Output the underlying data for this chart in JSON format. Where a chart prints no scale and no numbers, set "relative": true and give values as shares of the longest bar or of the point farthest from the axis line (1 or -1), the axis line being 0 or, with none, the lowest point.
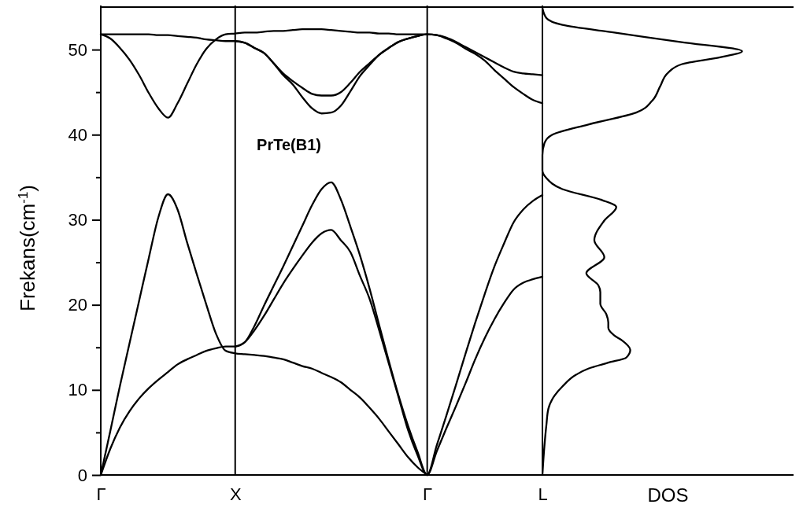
{
  "chart_data": [
    {
      "type": "line",
      "title": "PrTe(B1)",
      "ylabel": "Frekans(cm$^{-1}$)",
      "grid": "x",
      "categories": [
        "Γ",
        null,
        null,
        null,
        null,
        null,
        null,
        null,
        null,
        null,
        null,
        null,
        null,
        null,
        "X",
        null,
        null,
        null,
        null,
        null,
        null,
        null,
        null,
        null,
        null,
        null,
        null,
        null,
        null,
        null,
        null,
        null,
        null,
        null,
        "Γ",
        null,
        null,
        null,
        null,
        null,
        null,
        null,
        null,
        null,
        null,
        null,
        "L"
      ],
      "ylim": [
        0,
        55
      ],
      "yticks": [
        0,
        {
          "value": 5,
          "label": null
        },
        10,
        {
          "value": 15,
          "label": null
        },
        20,
        {
          "value": 25,
          "label": null
        },
        30,
        {
          "value": 35,
          "label": null
        },
        40,
        {
          "value": 45,
          "label": null
        },
        50
      ],
      "series": [
        {
          "color": "#000000",
          "values": [
            0,
            3.1,
            5.6,
            7.5,
            9.0,
            10.2,
            11.2,
            12.1,
            13.0,
            13.6,
            14.1,
            14.6,
            14.9,
            15.1,
            15.1,
            15.6,
            17.5,
            19.9,
            22.2,
            24.5,
            26.9,
            29.3,
            31.7,
            33.6,
            34.4,
            32.4,
            29.2,
            25.8,
            21.9,
            17.6,
            13.4,
            9.4,
            5.8,
            2.7,
            0,
            3.5,
            7.0,
            10.6,
            14.3,
            17.9,
            21.3,
            24.5,
            27.2,
            29.7,
            31.2,
            32.2,
            32.9
          ]
        },
        {
          "color": "#000000",
          "values": [
            null,
            null,
            null,
            null,
            null,
            null,
            null,
            null,
            null,
            null,
            null,
            null,
            null,
            null,
            15.1,
            15.6,
            17.0,
            18.7,
            20.6,
            22.5,
            24.2,
            25.8,
            27.3,
            28.4,
            28.8,
            27.6,
            26.2,
            23.4,
            20.7,
            17.0,
            13.1,
            9.2,
            5.3,
            2.3,
            0,
            2.8,
            5.5,
            8.1,
            10.8,
            13.6,
            16.1,
            18.3,
            20.2,
            21.8,
            22.6,
            23.0,
            23.3
          ]
        },
        {
          "color": "#000000",
          "values": [
            0,
            5.2,
            10.5,
            15.5,
            20.5,
            25.5,
            30.3,
            33.0,
            31.2,
            27.3,
            23.6,
            20.0,
            16.6,
            14.6,
            14.3,
            14.2,
            14.1,
            14.0,
            13.8,
            13.6,
            13.2,
            12.8,
            12.5,
            12.0,
            11.5,
            10.9,
            10.0,
            9.1,
            7.9,
            6.6,
            5.1,
            3.6,
            2.1,
            0.9,
            0,
            null,
            null,
            null,
            null,
            null,
            null,
            null,
            null,
            null,
            null,
            null,
            null
          ]
        },
        {
          "color": "#000000",
          "values": [
            51.8,
            51.8,
            51.8,
            51.8,
            51.8,
            51.8,
            51.7,
            51.7,
            51.6,
            51.5,
            51.4,
            51.2,
            51.1,
            51.0,
            51.0,
            50.8,
            50.2,
            49.6,
            48.4,
            47.2,
            46.3,
            45.5,
            44.8,
            44.6,
            44.6,
            45.0,
            46.1,
            47.4,
            48.4,
            49.4,
            50.2,
            50.9,
            51.3,
            51.6,
            51.8,
            51.7,
            51.3,
            50.8,
            50.1,
            49.5,
            48.7,
            47.6,
            46.6,
            45.6,
            44.8,
            44.1,
            43.7
          ]
        },
        {
          "color": "#000000",
          "values": [
            null,
            null,
            null,
            null,
            null,
            null,
            null,
            null,
            null,
            null,
            null,
            null,
            null,
            null,
            51.0,
            50.8,
            50.2,
            49.6,
            48.4,
            47.0,
            45.9,
            44.4,
            43.1,
            42.5,
            42.6,
            43.4,
            45.1,
            46.9,
            48.2,
            49.4,
            50.2,
            50.9,
            51.3,
            51.6,
            51.8,
            51.7,
            51.4,
            50.9,
            50.3,
            49.7,
            49.1,
            48.5,
            47.9,
            47.4,
            47.2,
            47.1,
            47.0
          ]
        },
        {
          "color": "#000000",
          "values": [
            51.8,
            51.3,
            50.2,
            48.8,
            47.0,
            44.9,
            43.1,
            42.0,
            43.7,
            46.0,
            48.3,
            50.1,
            51.2,
            51.8,
            51.9,
            52.0,
            52.0,
            52.1,
            52.2,
            52.2,
            52.3,
            52.4,
            52.4,
            52.4,
            52.3,
            52.2,
            52.1,
            52.0,
            52.0,
            51.9,
            51.9,
            51.8,
            51.8,
            51.8,
            51.8,
            null,
            null,
            null,
            null,
            null,
            null,
            null,
            null,
            null,
            null,
            null,
            null
          ]
        }
      ]
    },
    {
      "type": "line",
      "orientation": "horizontal",
      "relative": true,
      "xlabel": "DOS",
      "ylim": [
        0,
        55
      ],
      "tick_labels": false,
      "series": [
        {
          "color": "#000000",
          "x": [
            0,
            3.4,
            5.9,
            7.8,
            9.3,
            10.4,
            11.8,
            12.5,
            13.2,
            13.8,
            14.7,
            15.8,
            16.4,
            17.3,
            17.9,
            18.9,
            20.1,
            21.5,
            22.3,
            23.7,
            25.6,
            27.6,
            29.9,
            31.5,
            32.3,
            33.6,
            34.9,
            35.8,
            37.6,
            39.0,
            40.0,
            41.2,
            42.6,
            44.0,
            45.7,
            47.3,
            48.3,
            49.1,
            49.8,
            50.9,
            52.0,
            52.9,
            53.7,
            54.9
          ],
          "values": [
            0,
            0.01,
            0.02,
            0.03,
            0.06,
            0.1,
            0.17,
            0.23,
            0.33,
            0.42,
            0.44,
            0.4,
            0.36,
            0.33,
            0.33,
            0.32,
            0.29,
            0.29,
            0.28,
            0.22,
            0.31,
            0.26,
            0.31,
            0.37,
            0.3,
            0.1,
            0.02,
            0,
            0,
            0.01,
            0.05,
            0.23,
            0.47,
            0.55,
            0.59,
            0.63,
            0.7,
            0.89,
            1,
            0.69,
            0.36,
            0.1,
            0.02,
            0
          ]
        }
      ]
    }
  ]
}
